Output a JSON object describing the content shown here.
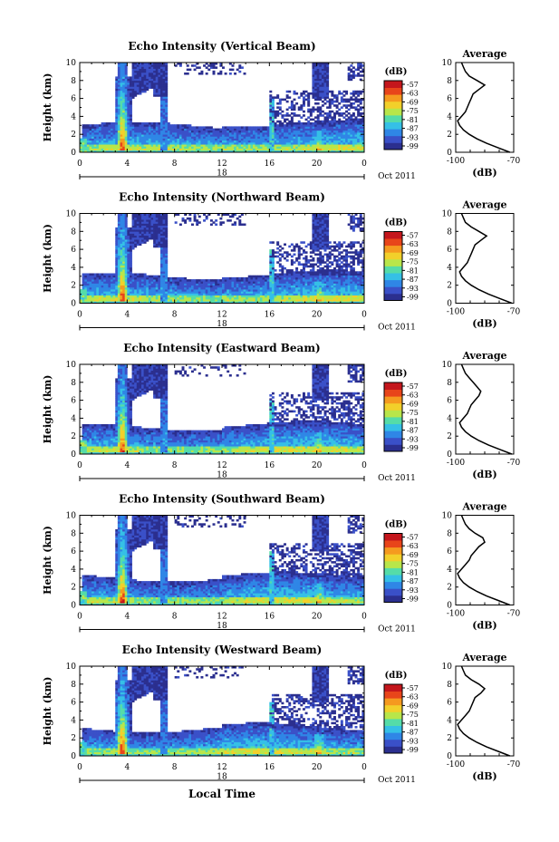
{
  "figure": {
    "xlabel_bottom": "Local Time",
    "date_label": "Oct 2011",
    "day_label": "18",
    "x_ticks": [
      "0",
      "4",
      "8",
      "12",
      "16",
      "20",
      "0"
    ],
    "y_ticks": [
      "0",
      "2",
      "4",
      "6",
      "8",
      "10"
    ],
    "ylabel": "Height (km)",
    "colorbar_unit": "(dB)",
    "colorbar_ticks": [
      "-57",
      "-63",
      "-69",
      "-75",
      "-81",
      "-87",
      "-93",
      "-99"
    ],
    "colorbar_colors": [
      "#2b2f8f",
      "#3a50c8",
      "#2f86e6",
      "#35c0e6",
      "#55dca8",
      "#b8e64a",
      "#f2d02a",
      "#f59a1f",
      "#e8451a",
      "#c4161c"
    ],
    "profile_title": "Average",
    "profile_xlabel": "(dB)",
    "profile_x_ticks": [
      "-100",
      "-70"
    ],
    "profile_y_ticks": [
      "0",
      "2",
      "4",
      "6",
      "8",
      "10"
    ]
  },
  "chart_data": [
    {
      "type": "heatmap",
      "title": "Echo Intensity (Vertical Beam)",
      "x_range_hours": [
        0,
        24
      ],
      "y_range_km": [
        0,
        10
      ],
      "color_range_db": [
        -99,
        -57
      ],
      "profile": {
        "title": "Average",
        "x_range_db": [
          -100,
          -70
        ],
        "height_km": [
          0,
          0.5,
          1,
          1.5,
          2,
          2.5,
          3,
          3.5,
          4,
          4.5,
          5,
          5.5,
          6,
          6.5,
          7,
          7.5,
          8,
          8.5,
          9,
          9.5,
          10
        ],
        "db": [
          -72,
          -78,
          -84,
          -89,
          -93,
          -96,
          -98,
          -99,
          -97,
          -95,
          -94,
          -93,
          -92,
          -91,
          -88,
          -85,
          -89,
          -93,
          -95,
          -96,
          -97
        ]
      }
    },
    {
      "type": "heatmap",
      "title": "Echo Intensity (Northward Beam)",
      "x_range_hours": [
        0,
        24
      ],
      "y_range_km": [
        0,
        10
      ],
      "color_range_db": [
        -99,
        -57
      ],
      "profile": {
        "title": "Average",
        "x_range_db": [
          -100,
          -70
        ],
        "height_km": [
          0,
          0.5,
          1,
          1.5,
          2,
          2.5,
          3,
          3.5,
          4,
          4.5,
          5,
          5.5,
          6,
          6.5,
          7,
          7.5,
          8,
          8.5,
          9,
          9.5,
          10
        ],
        "db": [
          -71,
          -77,
          -83,
          -88,
          -92,
          -95,
          -97,
          -98,
          -96,
          -94,
          -93,
          -92,
          -91,
          -90,
          -87,
          -84,
          -88,
          -92,
          -95,
          -96,
          -97
        ]
      }
    },
    {
      "type": "heatmap",
      "title": "Echo Intensity (Eastward Beam)",
      "x_range_hours": [
        0,
        24
      ],
      "y_range_km": [
        0,
        10
      ],
      "color_range_db": [
        -99,
        -57
      ],
      "profile": {
        "title": "Average",
        "x_range_db": [
          -100,
          -70
        ],
        "height_km": [
          0,
          0.5,
          1,
          1.5,
          2,
          2.5,
          3,
          3.5,
          4,
          4.5,
          5,
          5.5,
          6,
          6.5,
          7,
          7.5,
          8,
          8.5,
          9,
          9.5,
          10
        ],
        "db": [
          -71,
          -77,
          -83,
          -88,
          -92,
          -95,
          -97,
          -98,
          -96,
          -94,
          -93,
          -92,
          -90,
          -88,
          -87,
          -89,
          -91,
          -93,
          -95,
          -96,
          -97
        ]
      }
    },
    {
      "type": "heatmap",
      "title": "Echo Intensity (Southward Beam)",
      "x_range_hours": [
        0,
        24
      ],
      "y_range_km": [
        0,
        10
      ],
      "color_range_db": [
        -99,
        -57
      ],
      "profile": {
        "title": "Average",
        "x_range_db": [
          -100,
          -70
        ],
        "height_km": [
          0,
          0.5,
          1,
          1.5,
          2,
          2.5,
          3,
          3.5,
          4,
          4.5,
          5,
          5.5,
          6,
          6.5,
          7,
          7.5,
          8,
          8.5,
          9,
          9.5,
          10
        ],
        "db": [
          -72,
          -78,
          -84,
          -89,
          -93,
          -96,
          -98,
          -99,
          -97,
          -95,
          -93,
          -92,
          -90,
          -88,
          -85,
          -86,
          -90,
          -93,
          -95,
          -96,
          -97
        ]
      }
    },
    {
      "type": "heatmap",
      "title": "Echo Intensity (Westward Beam)",
      "x_range_hours": [
        0,
        24
      ],
      "y_range_km": [
        0,
        10
      ],
      "color_range_db": [
        -99,
        -57
      ],
      "profile": {
        "title": "Average",
        "x_range_db": [
          -100,
          -70
        ],
        "height_km": [
          0,
          0.5,
          1,
          1.5,
          2,
          2.5,
          3,
          3.5,
          4,
          4.5,
          5,
          5.5,
          6,
          6.5,
          7,
          7.5,
          8,
          8.5,
          9,
          9.5,
          10
        ],
        "db": [
          -72,
          -78,
          -84,
          -89,
          -93,
          -96,
          -98,
          -99,
          -97,
          -95,
          -93,
          -92,
          -91,
          -90,
          -87,
          -85,
          -88,
          -92,
          -95,
          -96,
          -97
        ]
      }
    }
  ]
}
